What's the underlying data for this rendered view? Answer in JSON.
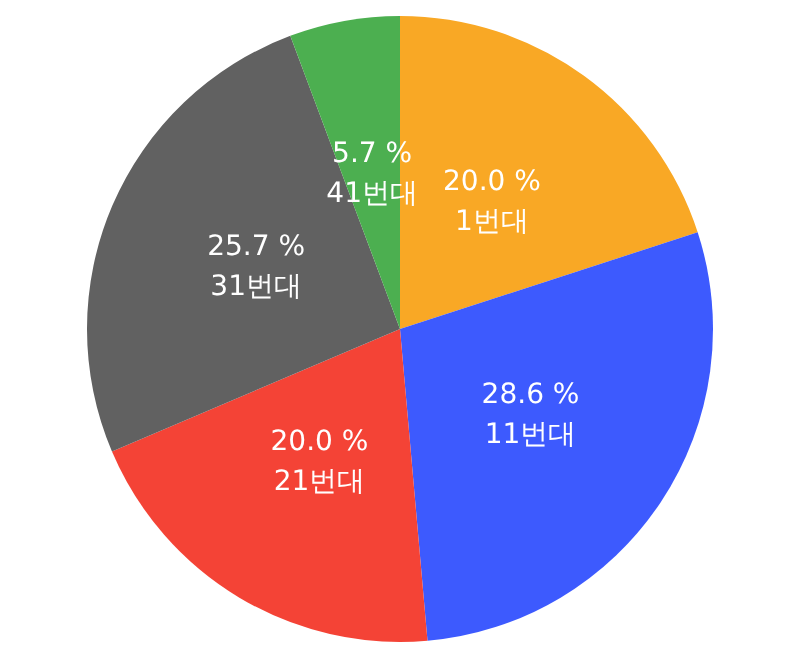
{
  "chart_data": {
    "type": "pie",
    "categories": [
      "1번대",
      "11번대",
      "21번대",
      "31번대",
      "41번대"
    ],
    "values": [
      20.0,
      28.6,
      20.0,
      25.7,
      5.7
    ],
    "value_labels": [
      "20.0 %",
      "28.6 %",
      "20.0 %",
      "25.7 %",
      "5.7 %"
    ],
    "colors": [
      "#f9a825",
      "#3d5afe",
      "#f44336",
      "#616161",
      "#4caf50"
    ],
    "legend": false
  }
}
